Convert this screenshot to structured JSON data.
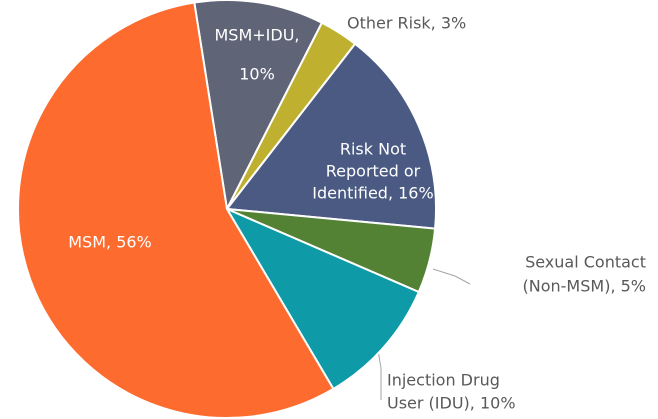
{
  "chart_data": {
    "type": "pie",
    "values": [
      10,
      3,
      16,
      5,
      10,
      56
    ],
    "value_labels": [
      [
        "MSM+IDU,",
        "10%"
      ],
      [
        "Other Risk, 3%"
      ],
      [
        "Risk Not",
        "Reported or",
        "Identified, 16%"
      ],
      [
        "Sexual Contact",
        "(Non-MSM), 5%"
      ],
      [
        "Injection Drug",
        "User (IDU), 10%"
      ],
      [
        "MSM, 56%"
      ]
    ],
    "colors": [
      "#5f6577",
      "#bfb12f",
      "#4a5a82",
      "#548235",
      "#0e9aa7",
      "#fd6b2e"
    ]
  }
}
